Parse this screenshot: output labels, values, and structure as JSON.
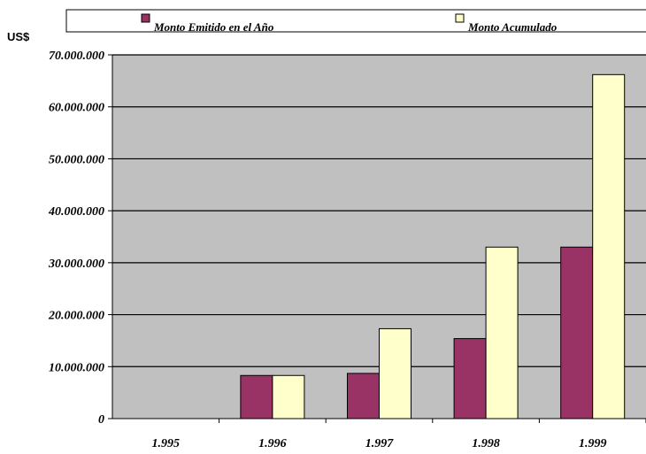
{
  "chart_data": {
    "type": "bar",
    "title": "",
    "xlabel": "",
    "ylabel": "US$",
    "categories": [
      "1.995",
      "1.996",
      "1.997",
      "1.998",
      "1.999"
    ],
    "series": [
      {
        "name": "Monto Emitido en el Año",
        "color": "#993366",
        "values": [
          0,
          8300000,
          8700000,
          15400000,
          33000000
        ]
      },
      {
        "name": "Monto Acumulado",
        "color": "#FFFFCC",
        "values": [
          0,
          8300000,
          17300000,
          33000000,
          66200000
        ]
      }
    ],
    "ylim": [
      0,
      70000000
    ],
    "yticks": [
      0,
      10000000,
      20000000,
      30000000,
      40000000,
      50000000,
      60000000,
      70000000
    ],
    "ytick_labels": [
      "0",
      "10.000.000",
      "20.000.000",
      "30.000.000",
      "40.000.000",
      "50.000.000",
      "60.000.000",
      "70.000.000"
    ],
    "grid": true,
    "legend_position": "top",
    "plot_background": "#C0C0C0"
  }
}
